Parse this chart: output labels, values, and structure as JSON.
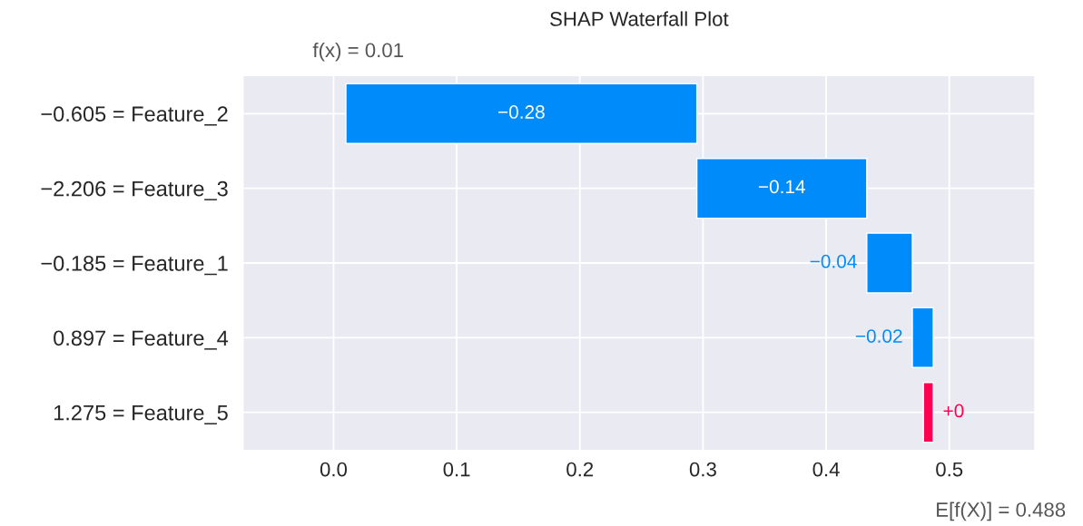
{
  "chart_data": {
    "type": "bar",
    "orientation": "horizontal",
    "title": "SHAP Waterfall Plot",
    "categories": [
      "−0.605 = Feature_2",
      "−2.206 = Feature_3",
      "−0.185 = Feature_1",
      "0.897 = Feature_4",
      "1.275 = Feature_5"
    ],
    "base": [
      0.295,
      0.433,
      0.47,
      0.487,
      0.479
    ],
    "values": [
      -0.285,
      -0.138,
      -0.037,
      -0.017,
      0.008
    ],
    "colors": [
      "#008bfb",
      "#008bfb",
      "#008bfb",
      "#008bfb",
      "#ff0051"
    ],
    "value_labels": [
      "−0.28",
      "−0.14",
      "−0.04",
      "−0.02",
      "+0"
    ],
    "xlim": [
      -0.073,
      0.569
    ],
    "xticks": [
      {
        "value": 0,
        "label": "0.0"
      },
      0.1,
      0.2,
      0.3,
      0.4,
      0.5
    ],
    "grid": true,
    "annotations": [
      "f(x) = 0.01",
      "E[f(X)] = 0.488"
    ]
  }
}
